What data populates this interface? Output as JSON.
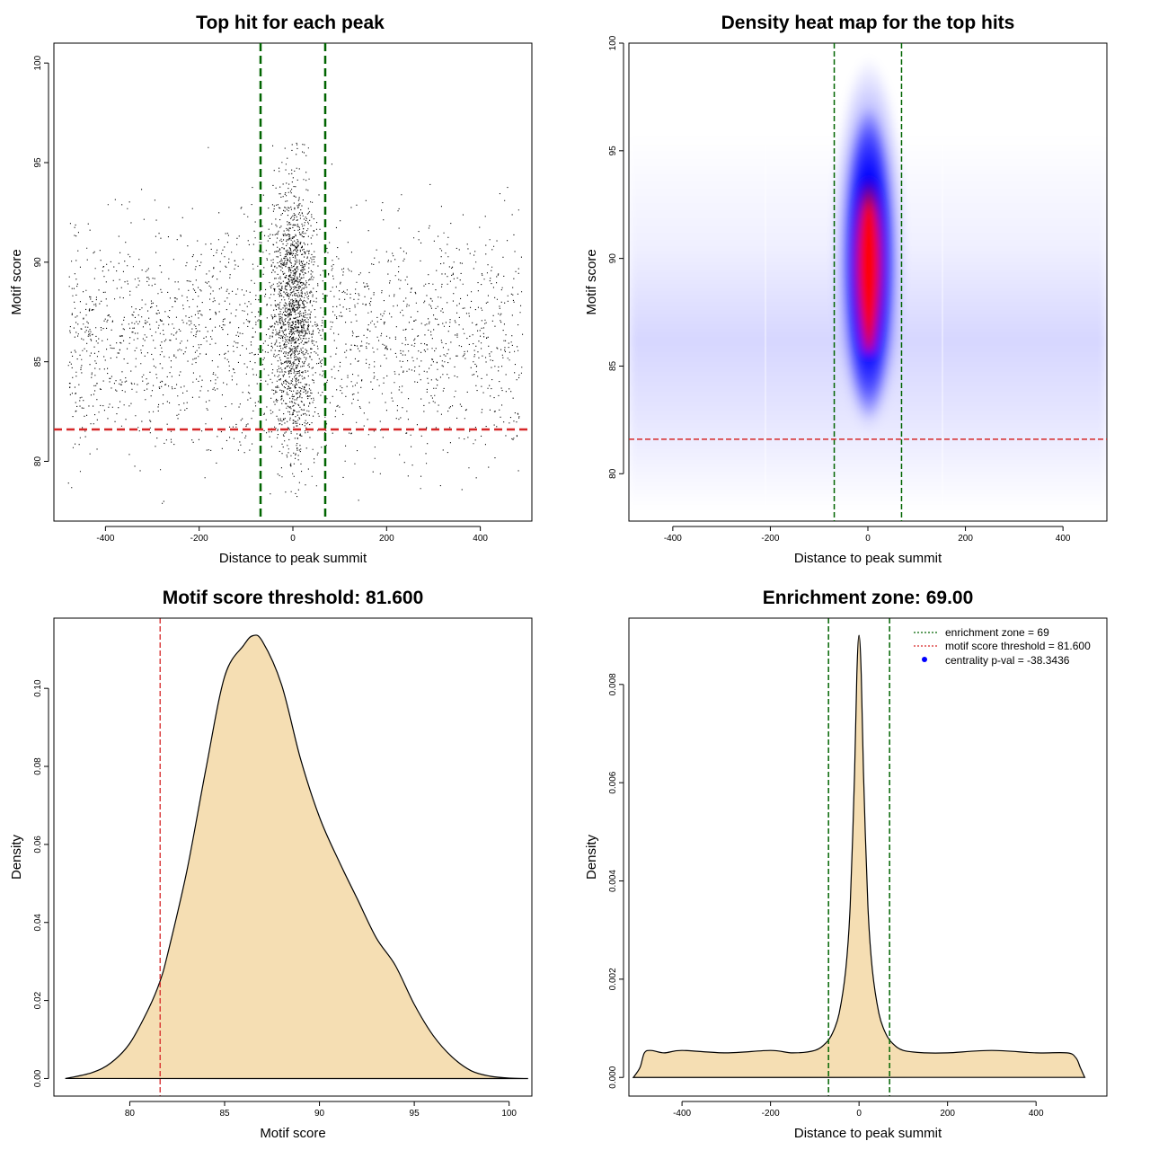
{
  "colors": {
    "threshold": "#d62728",
    "zone": "#006400",
    "fill": "#f5deb3",
    "heat_low": "#ffffff",
    "heat_mid": "#0000ff",
    "heat_high": "#ff0000",
    "legend_point": "#0000ff"
  },
  "chart_data": [
    {
      "id": "scatter",
      "type": "scatter",
      "title": "Top hit for each peak",
      "xlabel": "Distance to peak summit",
      "ylabel": "Motif score",
      "xlim": [
        -510,
        510
      ],
      "ylim": [
        77,
        101
      ],
      "xticks": [
        -400,
        -200,
        0,
        200,
        400
      ],
      "yticks": [
        80,
        85,
        90,
        95,
        100
      ],
      "zone": [
        -69,
        69
      ],
      "threshold": 81.6,
      "point_count_estimate": 20000,
      "central_peak_width_sd": 22
    },
    {
      "id": "heatmap",
      "type": "heatmap",
      "title": "Density heat map for the top hits",
      "xlabel": "Distance to peak summit",
      "ylabel": "Motif score",
      "xlim": [
        -490,
        490
      ],
      "ylim": [
        77.8,
        100
      ],
      "xticks": [
        -400,
        -200,
        0,
        200,
        400
      ],
      "yticks": [
        80,
        85,
        90,
        95,
        100
      ],
      "zone": [
        -69,
        69
      ],
      "threshold": 81.6,
      "hotspot": {
        "x": 0,
        "y": 88.5
      }
    },
    {
      "id": "score_density",
      "type": "area",
      "title": "Motif score threshold: 81.600",
      "xlabel": "Motif score",
      "ylabel": "Density",
      "xlim": [
        76,
        101.2
      ],
      "ylim": [
        -0.0045,
        0.118
      ],
      "xticks": [
        80,
        85,
        90,
        95,
        100
      ],
      "yticks": [
        0.0,
        0.02,
        0.04,
        0.06,
        0.08,
        0.1
      ],
      "ytick_labels": [
        "0.00",
        "0.02",
        "0.04",
        "0.06",
        "0.08",
        "0.10"
      ],
      "threshold": 81.6,
      "x": [
        76.6,
        78,
        79,
        80,
        81,
        81.6,
        82,
        83,
        84,
        85,
        86,
        86.5,
        87,
        88,
        89,
        90,
        91,
        92,
        93,
        94,
        95,
        96,
        97,
        98,
        99,
        100,
        101
      ],
      "y": [
        0.0,
        0.0015,
        0.004,
        0.009,
        0.018,
        0.025,
        0.032,
        0.053,
        0.079,
        0.103,
        0.111,
        0.1135,
        0.112,
        0.101,
        0.082,
        0.067,
        0.056,
        0.046,
        0.036,
        0.029,
        0.019,
        0.011,
        0.0055,
        0.002,
        0.0006,
        0.0001,
        0.0
      ]
    },
    {
      "id": "distance_density",
      "type": "area",
      "title": "Enrichment zone: 69.00",
      "xlabel": "Distance to peak summit",
      "ylabel": "Density",
      "xlim": [
        -520,
        560
      ],
      "ylim": [
        -0.00038,
        0.00935
      ],
      "xticks": [
        -400,
        -200,
        0,
        200,
        400
      ],
      "yticks": [
        0.0,
        0.002,
        0.004,
        0.006,
        0.008
      ],
      "ytick_labels": [
        "0.000",
        "0.002",
        "0.004",
        "0.006",
        "0.008"
      ],
      "zone": [
        -69,
        69
      ],
      "x": [
        -510,
        -495,
        -485,
        -470,
        -440,
        -400,
        -300,
        -200,
        -150,
        -100,
        -75,
        -60,
        -45,
        -30,
        -20,
        -10,
        -5,
        0,
        5,
        10,
        20,
        30,
        45,
        60,
        75,
        100,
        150,
        200,
        300,
        400,
        470,
        490,
        500,
        510
      ],
      "y": [
        0.0,
        0.0002,
        0.0005,
        0.00055,
        0.0005,
        0.00055,
        0.0005,
        0.00055,
        0.0005,
        0.00055,
        0.0007,
        0.0009,
        0.0013,
        0.0022,
        0.0035,
        0.0062,
        0.0082,
        0.009,
        0.0082,
        0.0062,
        0.0035,
        0.0022,
        0.0013,
        0.0009,
        0.0007,
        0.00055,
        0.0005,
        0.0005,
        0.00055,
        0.0005,
        0.0005,
        0.0004,
        0.0002,
        0.0
      ]
    }
  ],
  "legend": {
    "items": [
      {
        "label": "enrichment zone = 69",
        "style": "dotted",
        "color": "#006400"
      },
      {
        "label": "motif score threshold = 81.600",
        "style": "dotted",
        "color": "#d62728"
      },
      {
        "label": "centrality p-val = -38.3436",
        "style": "point",
        "color": "#0000ff"
      }
    ]
  }
}
